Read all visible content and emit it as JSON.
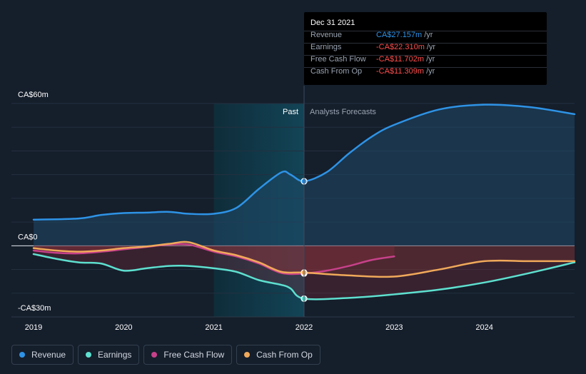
{
  "tooltip": {
    "date": "Dec 31 2021",
    "rows": [
      {
        "name": "Revenue",
        "value": "CA$27.157m",
        "unit": "/yr",
        "color": "#2e93e6"
      },
      {
        "name": "Earnings",
        "value": "-CA$22.310m",
        "unit": "/yr",
        "color": "#ff4d4d"
      },
      {
        "name": "Free Cash Flow",
        "value": "-CA$11.702m",
        "unit": "/yr",
        "color": "#ff4d4d"
      },
      {
        "name": "Cash From Op",
        "value": "-CA$11.309m",
        "unit": "/yr",
        "color": "#ff4d4d"
      }
    ]
  },
  "legend": [
    {
      "label": "Revenue",
      "color": "#2e93e6"
    },
    {
      "label": "Earnings",
      "color": "#5ee0cf"
    },
    {
      "label": "Free Cash Flow",
      "color": "#c7418a"
    },
    {
      "label": "Cash From Op",
      "color": "#f0a95a"
    }
  ],
  "chart_data": {
    "type": "line",
    "title": "",
    "ylim": [
      -30,
      60
    ],
    "y_tick_labels": [
      {
        "value": 60,
        "label": "CA$60m"
      },
      {
        "value": 0,
        "label": "CA$0"
      },
      {
        "value": -30,
        "label": "-CA$30m"
      }
    ],
    "xlim": [
      2019,
      2025
    ],
    "x_ticks": [
      2019,
      2020,
      2021,
      2022,
      2023,
      2024
    ],
    "x_tick_labels": [
      "2019",
      "2020",
      "2021",
      "2022",
      "2023",
      "2024"
    ],
    "past_label": "Past",
    "forecast_label": "Analysts Forecasts",
    "divider_x": 2022.0,
    "highlight_range": [
      2021.0,
      2022.0
    ],
    "series": [
      {
        "name": "Revenue",
        "color": "#2e93e6",
        "points": [
          [
            2019.0,
            11
          ],
          [
            2019.5,
            11.5
          ],
          [
            2019.75,
            13
          ],
          [
            2020.0,
            13.8
          ],
          [
            2020.25,
            14
          ],
          [
            2020.5,
            14.3
          ],
          [
            2020.72,
            13.5
          ],
          [
            2021.0,
            13.5
          ],
          [
            2021.25,
            16
          ],
          [
            2021.5,
            24
          ],
          [
            2021.75,
            31
          ],
          [
            2021.85,
            30
          ],
          [
            2022.0,
            27.2
          ],
          [
            2022.25,
            31
          ],
          [
            2022.5,
            39
          ],
          [
            2022.75,
            46
          ],
          [
            2023.0,
            51
          ],
          [
            2023.5,
            57.5
          ],
          [
            2024.0,
            59.5
          ],
          [
            2024.5,
            58.5
          ],
          [
            2025.0,
            55.5
          ]
        ]
      },
      {
        "name": "Earnings",
        "color": "#5ee0cf",
        "points": [
          [
            2019.0,
            -3.5
          ],
          [
            2019.25,
            -5.5
          ],
          [
            2019.5,
            -7
          ],
          [
            2019.75,
            -7.5
          ],
          [
            2020.0,
            -10.5
          ],
          [
            2020.25,
            -9.5
          ],
          [
            2020.5,
            -8.5
          ],
          [
            2020.72,
            -8.5
          ],
          [
            2021.0,
            -9.5
          ],
          [
            2021.25,
            -11
          ],
          [
            2021.5,
            -14.5
          ],
          [
            2021.75,
            -16.5
          ],
          [
            2021.85,
            -18
          ],
          [
            2022.0,
            -22.3
          ],
          [
            2022.5,
            -22
          ],
          [
            2023.0,
            -20.5
          ],
          [
            2023.5,
            -18.5
          ],
          [
            2024.0,
            -15.5
          ],
          [
            2024.5,
            -11.5
          ],
          [
            2025.0,
            -7
          ]
        ]
      },
      {
        "name": "Free Cash Flow",
        "color": "#c7418a",
        "points": [
          [
            2019.0,
            -2
          ],
          [
            2019.25,
            -3
          ],
          [
            2019.5,
            -3.2
          ],
          [
            2019.75,
            -2.5
          ],
          [
            2020.0,
            -1.5
          ],
          [
            2020.25,
            -0.5
          ],
          [
            2020.5,
            0.5
          ],
          [
            2020.72,
            0.5
          ],
          [
            2021.0,
            -2.5
          ],
          [
            2021.25,
            -4.5
          ],
          [
            2021.5,
            -7.5
          ],
          [
            2021.75,
            -11.5
          ],
          [
            2022.0,
            -11.7
          ],
          [
            2022.25,
            -10.5
          ],
          [
            2022.5,
            -8.5
          ],
          [
            2022.75,
            -6
          ],
          [
            2023.0,
            -4.5
          ]
        ]
      },
      {
        "name": "Cash From Op",
        "color": "#f0a95a",
        "points": [
          [
            2019.0,
            -1
          ],
          [
            2019.25,
            -2
          ],
          [
            2019.5,
            -2.5
          ],
          [
            2019.75,
            -2
          ],
          [
            2020.0,
            -1
          ],
          [
            2020.25,
            -0.3
          ],
          [
            2020.5,
            0.8
          ],
          [
            2020.72,
            1.5
          ],
          [
            2021.0,
            -2
          ],
          [
            2021.25,
            -4
          ],
          [
            2021.5,
            -7
          ],
          [
            2021.75,
            -11
          ],
          [
            2022.0,
            -11.3
          ],
          [
            2022.5,
            -12.5
          ],
          [
            2023.0,
            -13
          ],
          [
            2023.5,
            -10
          ],
          [
            2024.0,
            -6.5
          ],
          [
            2024.5,
            -6.5
          ],
          [
            2025.0,
            -6.5
          ]
        ]
      }
    ]
  }
}
